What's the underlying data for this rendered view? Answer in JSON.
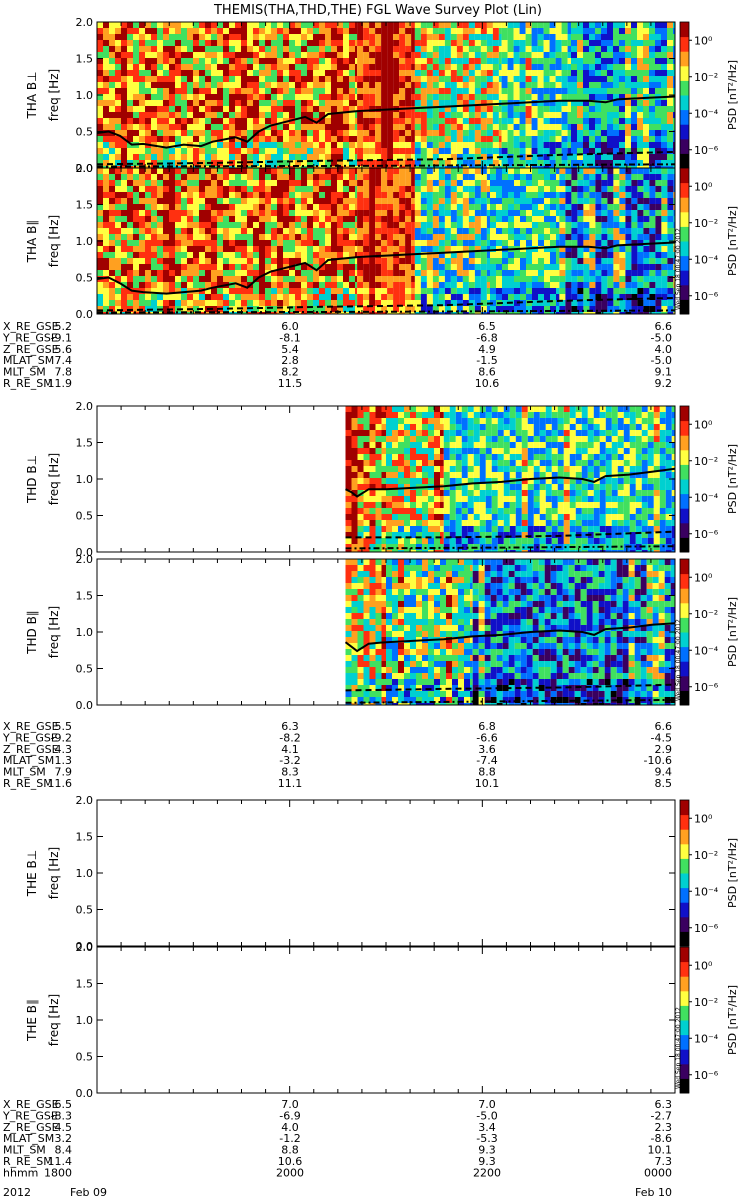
{
  "title": "THEMIS(THA,THD,THE) FGL Wave Survey Plot (Lin)",
  "colorbar": {
    "label": "PSD [nT²/Hz]",
    "tick_labels": [
      "10⁰",
      "10⁻²",
      "10⁻⁴",
      "10⁻⁶"
    ],
    "tick_exponents": [
      0,
      -2,
      -4,
      -6
    ],
    "range_exponent": [
      -7,
      1
    ]
  },
  "stamp": "Wed Sep 18 00:47:00 2012",
  "colors": {
    "scale": [
      "#000000",
      "#3a0060",
      "#1010c8",
      "#0070ff",
      "#00d0d0",
      "#40e060",
      "#ffff40",
      "#ffa020",
      "#ff3010",
      "#a00000"
    ],
    "empty": "#ffffff"
  },
  "chart_data": [
    {
      "type": "heatmap",
      "probe": "THA",
      "component": "perp",
      "ylabel": "THA B⊥",
      "ylabel_unit": "freq [Hz]",
      "ylim": [
        0,
        2
      ],
      "yticks": [
        "0.0",
        "0.5",
        "1.0",
        "1.5",
        "2.0"
      ],
      "yvalues": [
        0,
        0.5,
        1,
        1.5,
        2
      ],
      "data_start": 0.0,
      "has_data": true,
      "line_solid": [
        [
          0,
          0.48
        ],
        [
          0.02,
          0.5
        ],
        [
          0.04,
          0.44
        ],
        [
          0.06,
          0.32
        ],
        [
          0.08,
          0.33
        ],
        [
          0.12,
          0.28
        ],
        [
          0.15,
          0.32
        ],
        [
          0.18,
          0.3
        ],
        [
          0.2,
          0.36
        ],
        [
          0.24,
          0.42
        ],
        [
          0.26,
          0.36
        ],
        [
          0.28,
          0.5
        ],
        [
          0.3,
          0.58
        ],
        [
          0.33,
          0.64
        ],
        [
          0.36,
          0.7
        ],
        [
          0.38,
          0.62
        ],
        [
          0.4,
          0.74
        ],
        [
          0.45,
          0.78
        ],
        [
          0.5,
          0.8
        ],
        [
          0.55,
          0.82
        ],
        [
          0.6,
          0.84
        ],
        [
          0.65,
          0.86
        ],
        [
          0.7,
          0.88
        ],
        [
          0.75,
          0.9
        ],
        [
          0.8,
          0.92
        ],
        [
          0.85,
          0.92
        ],
        [
          0.88,
          0.9
        ],
        [
          0.9,
          0.94
        ],
        [
          0.95,
          0.96
        ],
        [
          1.0,
          0.98
        ]
      ],
      "line_dashed": [
        [
          0,
          0.05
        ],
        [
          0.2,
          0.07
        ],
        [
          0.4,
          0.1
        ],
        [
          0.6,
          0.12
        ],
        [
          0.8,
          0.18
        ],
        [
          1.0,
          0.22
        ]
      ],
      "line_dashdot": [
        [
          0,
          0.02
        ],
        [
          0.5,
          0.03
        ],
        [
          1.0,
          0.05
        ]
      ],
      "bands": [
        {
          "from": 0.0,
          "to": 0.45,
          "profile": "hot"
        },
        {
          "from": 0.45,
          "to": 0.55,
          "profile": "veryhot"
        },
        {
          "from": 0.55,
          "to": 0.7,
          "profile": "mixed"
        },
        {
          "from": 0.7,
          "to": 0.82,
          "profile": "cool"
        },
        {
          "from": 0.82,
          "to": 1.0,
          "profile": "cold"
        }
      ]
    },
    {
      "type": "heatmap",
      "probe": "THA",
      "component": "par",
      "ylabel": "THA B∥",
      "ylabel_unit": "freq [Hz]",
      "ylim": [
        0,
        2
      ],
      "yticks": [
        "0.0",
        "0.5",
        "1.0",
        "1.5",
        "2.0"
      ],
      "yvalues": [
        0,
        0.5,
        1,
        1.5,
        2
      ],
      "data_start": 0.0,
      "has_data": true,
      "line_solid": [
        [
          0,
          0.48
        ],
        [
          0.02,
          0.5
        ],
        [
          0.04,
          0.42
        ],
        [
          0.06,
          0.32
        ],
        [
          0.08,
          0.3
        ],
        [
          0.12,
          0.28
        ],
        [
          0.15,
          0.3
        ],
        [
          0.18,
          0.32
        ],
        [
          0.2,
          0.36
        ],
        [
          0.24,
          0.42
        ],
        [
          0.26,
          0.36
        ],
        [
          0.28,
          0.5
        ],
        [
          0.3,
          0.58
        ],
        [
          0.33,
          0.64
        ],
        [
          0.36,
          0.7
        ],
        [
          0.38,
          0.6
        ],
        [
          0.4,
          0.74
        ],
        [
          0.45,
          0.78
        ],
        [
          0.5,
          0.8
        ],
        [
          0.55,
          0.82
        ],
        [
          0.6,
          0.84
        ],
        [
          0.65,
          0.86
        ],
        [
          0.7,
          0.88
        ],
        [
          0.75,
          0.9
        ],
        [
          0.8,
          0.92
        ],
        [
          0.85,
          0.92
        ],
        [
          0.88,
          0.9
        ],
        [
          0.9,
          0.94
        ],
        [
          0.95,
          0.96
        ],
        [
          1.0,
          0.98
        ]
      ],
      "line_dashed": [
        [
          0,
          0.05
        ],
        [
          0.2,
          0.07
        ],
        [
          0.4,
          0.1
        ],
        [
          0.6,
          0.12
        ],
        [
          0.8,
          0.18
        ],
        [
          1.0,
          0.22
        ]
      ],
      "line_dashdot": [
        [
          0,
          0.02
        ],
        [
          0.5,
          0.03
        ],
        [
          1.0,
          0.05
        ]
      ],
      "bands": [
        {
          "from": 0.0,
          "to": 0.45,
          "profile": "hot"
        },
        {
          "from": 0.45,
          "to": 0.55,
          "profile": "veryhot"
        },
        {
          "from": 0.55,
          "to": 0.68,
          "profile": "mixedcool"
        },
        {
          "from": 0.68,
          "to": 0.8,
          "profile": "cool"
        },
        {
          "from": 0.8,
          "to": 1.0,
          "profile": "colder"
        }
      ]
    },
    {
      "type": "heatmap",
      "probe": "THD",
      "component": "perp",
      "ylabel": "THD B⊥",
      "ylabel_unit": "freq [Hz]",
      "ylim": [
        0,
        2
      ],
      "yticks": [
        "0.0",
        "0.5",
        "1.0",
        "1.5",
        "2.0"
      ],
      "yvalues": [
        0,
        0.5,
        1,
        1.5,
        2
      ],
      "data_start": 0.43,
      "has_data": true,
      "line_solid": [
        [
          0.43,
          0.86
        ],
        [
          0.44,
          0.82
        ],
        [
          0.45,
          0.76
        ],
        [
          0.47,
          0.86
        ],
        [
          0.5,
          0.86
        ],
        [
          0.55,
          0.88
        ],
        [
          0.6,
          0.9
        ],
        [
          0.65,
          0.94
        ],
        [
          0.7,
          0.96
        ],
        [
          0.75,
          1.0
        ],
        [
          0.8,
          1.02
        ],
        [
          0.84,
          1.0
        ],
        [
          0.86,
          0.96
        ],
        [
          0.88,
          1.04
        ],
        [
          0.92,
          1.06
        ],
        [
          0.96,
          1.1
        ],
        [
          1.0,
          1.14
        ]
      ],
      "line_dashed": [
        [
          0.43,
          0.2
        ],
        [
          0.6,
          0.2
        ],
        [
          0.8,
          0.22
        ],
        [
          1.0,
          0.28
        ]
      ],
      "line_dashdot": [
        [
          0.43,
          0.05
        ],
        [
          0.7,
          0.06
        ],
        [
          1.0,
          0.08
        ]
      ],
      "bands": [
        {
          "from": 0.43,
          "to": 0.5,
          "profile": "hot"
        },
        {
          "from": 0.5,
          "to": 0.6,
          "profile": "mixed"
        },
        {
          "from": 0.6,
          "to": 1.0,
          "profile": "cool"
        }
      ]
    },
    {
      "type": "heatmap",
      "probe": "THD",
      "component": "par",
      "ylabel": "THD B∥",
      "ylabel_unit": "freq [Hz]",
      "ylim": [
        0,
        2
      ],
      "yticks": [
        "0.0",
        "0.5",
        "1.0",
        "1.5",
        "2.0"
      ],
      "yvalues": [
        0,
        0.5,
        1,
        1.5,
        2
      ],
      "data_start": 0.43,
      "has_data": true,
      "line_solid": [
        [
          0.43,
          0.86
        ],
        [
          0.44,
          0.8
        ],
        [
          0.45,
          0.74
        ],
        [
          0.47,
          0.84
        ],
        [
          0.5,
          0.86
        ],
        [
          0.55,
          0.88
        ],
        [
          0.6,
          0.9
        ],
        [
          0.65,
          0.94
        ],
        [
          0.7,
          0.96
        ],
        [
          0.75,
          1.0
        ],
        [
          0.8,
          1.02
        ],
        [
          0.84,
          1.0
        ],
        [
          0.86,
          0.96
        ],
        [
          0.88,
          1.04
        ],
        [
          0.92,
          1.06
        ],
        [
          0.96,
          1.1
        ],
        [
          1.0,
          1.12
        ]
      ],
      "line_dashed": [
        [
          0.43,
          0.2
        ],
        [
          0.6,
          0.22
        ],
        [
          0.8,
          0.24
        ],
        [
          1.0,
          0.28
        ]
      ],
      "line_dashdot": [
        [
          0.43,
          0.03
        ],
        [
          0.7,
          0.05
        ],
        [
          1.0,
          0.07
        ]
      ],
      "bands": [
        {
          "from": 0.43,
          "to": 0.5,
          "profile": "mixed"
        },
        {
          "from": 0.5,
          "to": 0.65,
          "profile": "mixedcool"
        },
        {
          "from": 0.65,
          "to": 1.0,
          "profile": "colder"
        }
      ]
    },
    {
      "type": "heatmap",
      "probe": "THE",
      "component": "perp",
      "ylabel": "THE B⊥",
      "ylabel_unit": "freq [Hz]",
      "ylim": [
        0,
        2
      ],
      "yticks": [
        "0.0",
        "0.5",
        "1.0",
        "1.5",
        "2.0"
      ],
      "yvalues": [
        0,
        0.5,
        1,
        1.5,
        2
      ],
      "data_start": 1.0,
      "has_data": false,
      "line_solid": [],
      "line_dashed": [],
      "line_dashdot": [],
      "bands": []
    },
    {
      "type": "heatmap",
      "probe": "THE",
      "component": "par",
      "ylabel": "THE B∥",
      "ylabel_unit": "freq [Hz]",
      "ylim": [
        0,
        2
      ],
      "yticks": [
        "0.0",
        "0.5",
        "1.0",
        "1.5",
        "2.0"
      ],
      "yvalues": [
        0,
        0.5,
        1,
        1.5,
        2
      ],
      "data_start": 1.0,
      "has_data": false,
      "line_solid": [],
      "line_dashed": [],
      "line_dashdot": [],
      "bands": []
    }
  ],
  "orbit_tables": [
    {
      "probe": "THA",
      "rows": [
        {
          "label": "X_RE_GSE",
          "values": [
            "5.2",
            "6.0",
            "6.5",
            "6.6"
          ]
        },
        {
          "label": "Y_RE_GSE",
          "values": [
            "-9.1",
            "-8.1",
            "-6.8",
            "-5.0"
          ]
        },
        {
          "label": "Z_RE_GSE",
          "values": [
            "5.6",
            "5.4",
            "4.9",
            "4.0"
          ]
        },
        {
          "label": "MLAT_SM",
          "values": [
            "7.4",
            "2.8",
            "-1.5",
            "-5.0"
          ]
        },
        {
          "label": "MLT_SM",
          "values": [
            "7.8",
            "8.2",
            "8.6",
            "9.1"
          ]
        },
        {
          "label": "R_RE_SM",
          "values": [
            "11.9",
            "11.5",
            "10.6",
            "9.2"
          ]
        }
      ]
    },
    {
      "probe": "THD",
      "rows": [
        {
          "label": "X_RE_GSE",
          "values": [
            "5.5",
            "6.3",
            "6.8",
            "6.6"
          ]
        },
        {
          "label": "Y_RE_GSE",
          "values": [
            "-9.2",
            "-8.2",
            "-6.6",
            "-4.5"
          ]
        },
        {
          "label": "Z_RE_GSE",
          "values": [
            "4.3",
            "4.1",
            "3.6",
            "2.9"
          ]
        },
        {
          "label": "MLAT_SM",
          "values": [
            "1.3",
            "-3.2",
            "-7.4",
            "-10.6"
          ]
        },
        {
          "label": "MLT_SM",
          "values": [
            "7.9",
            "8.3",
            "8.8",
            "9.4"
          ]
        },
        {
          "label": "R_RE_SM",
          "values": [
            "11.6",
            "11.1",
            "10.1",
            "8.5"
          ]
        }
      ]
    },
    {
      "probe": "THE",
      "rows": [
        {
          "label": "X_RE_GSE",
          "values": [
            "6.5",
            "7.0",
            "7.0",
            "6.3"
          ]
        },
        {
          "label": "Y_RE_GSE",
          "values": [
            "-8.3",
            "-6.9",
            "-5.0",
            "-2.7"
          ]
        },
        {
          "label": "Z_RE_GSE",
          "values": [
            "4.5",
            "4.0",
            "3.4",
            "2.3"
          ]
        },
        {
          "label": "MLAT_SM",
          "values": [
            "3.2",
            "-1.2",
            "-5.3",
            "-8.6"
          ]
        },
        {
          "label": "MLT_SM",
          "values": [
            "8.4",
            "8.8",
            "9.3",
            "10.1"
          ]
        },
        {
          "label": "R_RE_SM",
          "values": [
            "11.4",
            "10.6",
            "9.3",
            "7.3"
          ]
        },
        {
          "label": "hhmm",
          "values": [
            "1800",
            "2000",
            "2200",
            "0000"
          ]
        }
      ]
    }
  ],
  "time_axis": {
    "year_label": "2012",
    "start_date": "Feb 09",
    "end_date": "Feb 10"
  }
}
